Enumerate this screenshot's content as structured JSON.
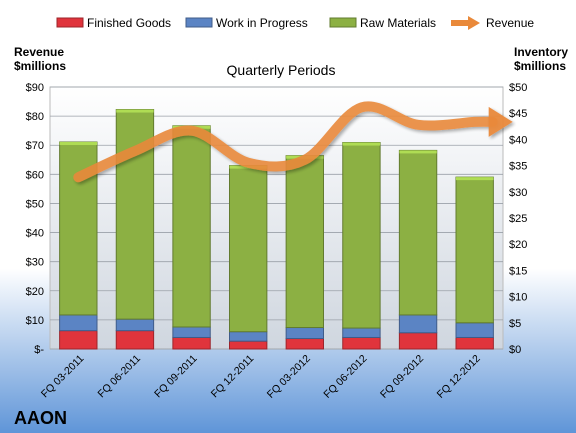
{
  "chart_data": {
    "type": "bar",
    "title": "Quarterly Periods",
    "company": "AAON",
    "y_left_label": [
      "Revenue",
      "$millions"
    ],
    "y_right_label": [
      "Inventory",
      "$millions"
    ],
    "categories": [
      "FQ 03-2011",
      "FQ 06-2011",
      "FQ 09-2011",
      "FQ 12-2011",
      "FQ 03-2012",
      "FQ 06-2012",
      "FQ 09-2012",
      "FQ 12-2012"
    ],
    "stacked": true,
    "y_left_range": [
      0,
      90
    ],
    "y_left_ticks": [
      "$-",
      "$10",
      "$20",
      "$30",
      "$40",
      "$50",
      "$60",
      "$70",
      "$80",
      "$90"
    ],
    "y_right_range": [
      0,
      50
    ],
    "y_right_ticks": [
      "$0",
      "$5",
      "$10",
      "$15",
      "$20",
      "$25",
      "$30",
      "$35",
      "$40",
      "$45",
      "$50"
    ],
    "legend_position": "top",
    "series": [
      {
        "name": "Finished Goods",
        "axis": "right",
        "kind": "bar",
        "color": "#e0343c",
        "values": [
          3.5,
          3.5,
          2.2,
          1.5,
          2.0,
          2.2,
          3.1,
          2.2
        ]
      },
      {
        "name": "Work in Progress",
        "axis": "right",
        "kind": "bar",
        "color": "#5b84c4",
        "values": [
          3.0,
          2.2,
          2.0,
          1.8,
          2.1,
          1.8,
          3.4,
          2.8
        ]
      },
      {
        "name": "Raw Materials",
        "axis": "right",
        "kind": "bar",
        "color": "#8cb043",
        "values": [
          33.0,
          40.0,
          38.4,
          31.7,
          32.8,
          35.4,
          31.4,
          27.8
        ]
      },
      {
        "name": "Revenue",
        "axis": "left",
        "kind": "line",
        "color": "#e9893a",
        "values": [
          59,
          68,
          75,
          64,
          65,
          83,
          77,
          78
        ]
      }
    ]
  }
}
